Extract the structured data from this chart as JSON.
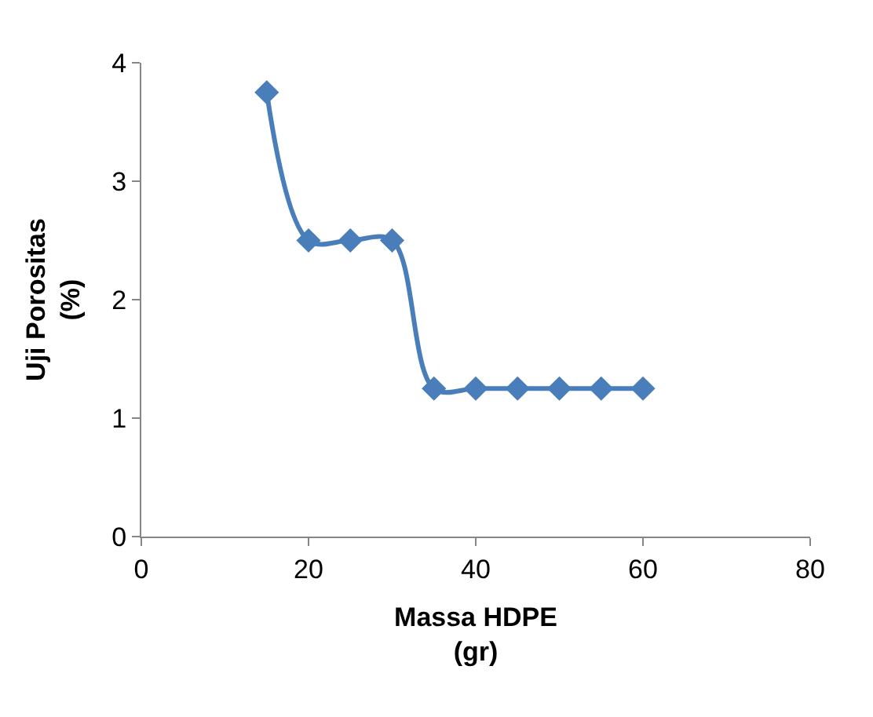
{
  "chart_data": {
    "type": "line",
    "xlabel": "Massa HDPE\n(gr)",
    "ylabel": "Uji Porositas\n(%)",
    "x": [
      15,
      20,
      25,
      30,
      35,
      40,
      45,
      50,
      55,
      60
    ],
    "series": [
      {
        "color": "#4a7ebb",
        "values": [
          3.75,
          2.5,
          2.5,
          2.5,
          1.25,
          1.25,
          1.25,
          1.25,
          1.25,
          1.25
        ]
      }
    ],
    "xlim": [
      0,
      80
    ],
    "xticks": [
      0,
      20,
      40,
      60,
      80
    ],
    "ylim": [
      0,
      4
    ],
    "yticks": [
      0,
      1,
      2,
      3,
      4
    ],
    "legend": false,
    "marker": "diamond",
    "line_style": "solid"
  }
}
